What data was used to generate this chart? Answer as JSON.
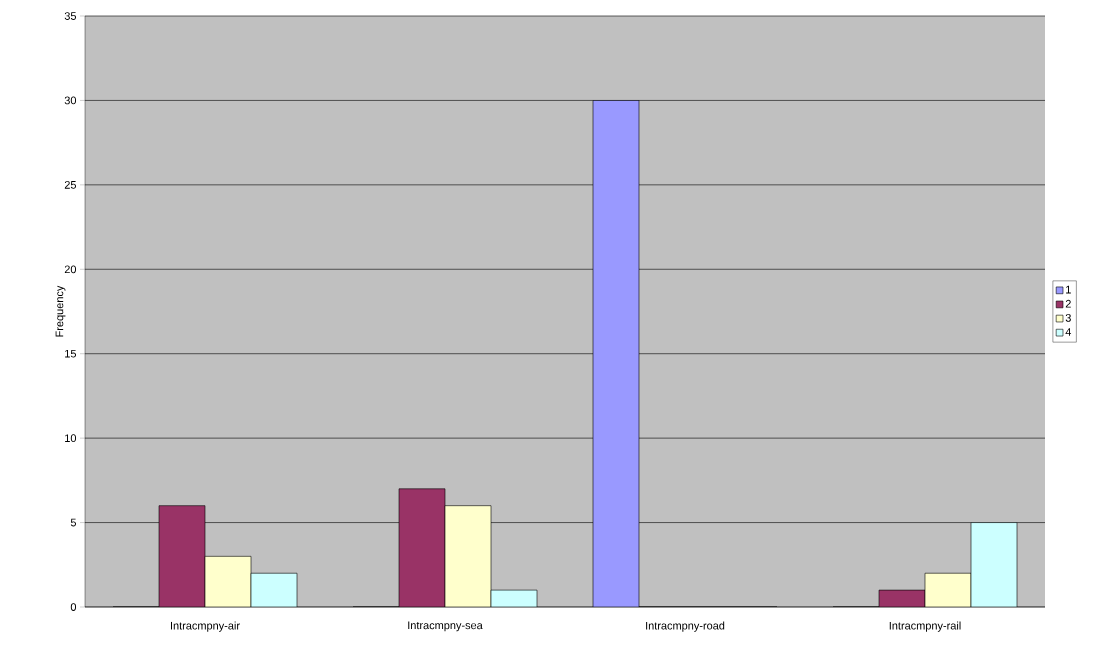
{
  "chart_data": {
    "type": "bar",
    "ylabel": "Frequency",
    "categories": [
      "Intracmpny-air",
      "Intracmpny-sea",
      "Intracmpny-road",
      "Intracmpny-rail"
    ],
    "series": [
      {
        "name": "1",
        "color": "#9999ff",
        "values": [
          0,
          0,
          30,
          0
        ]
      },
      {
        "name": "2",
        "color": "#993366",
        "values": [
          6,
          7,
          0,
          1
        ]
      },
      {
        "name": "3",
        "color": "#ffffcc",
        "values": [
          3,
          6,
          0,
          2
        ]
      },
      {
        "name": "4",
        "color": "#ccffff",
        "values": [
          2,
          1,
          0,
          5
        ]
      }
    ],
    "ylim": [
      0,
      35
    ],
    "yticks": [
      0,
      5,
      10,
      15,
      20,
      25,
      30,
      35
    ],
    "grid": "y",
    "legend": "right"
  }
}
